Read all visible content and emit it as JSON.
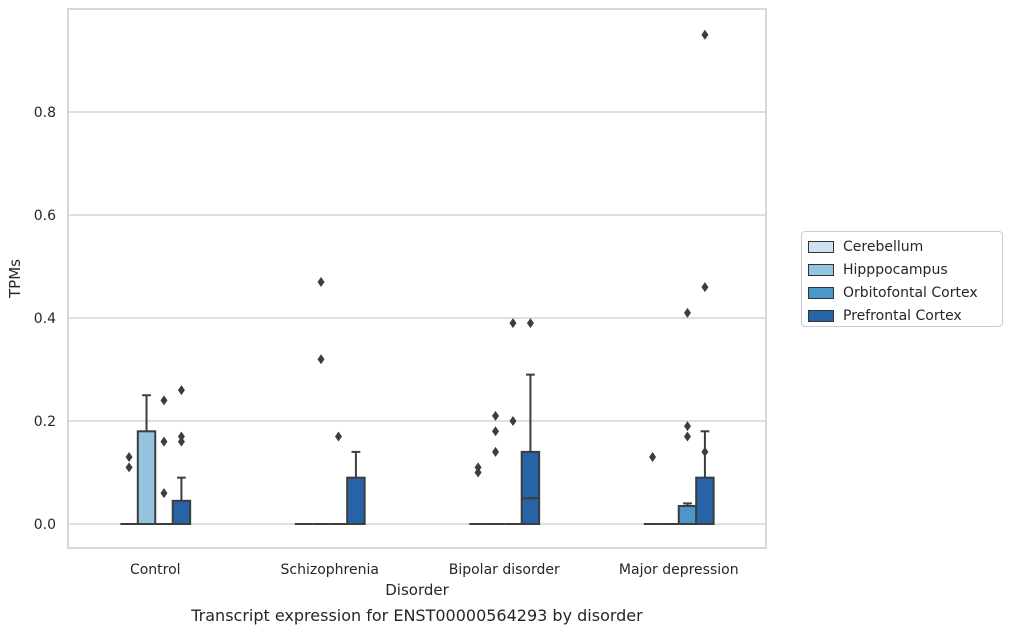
{
  "caption": "Transcript expression for ENST00000564293 by disorder",
  "chart_data": {
    "type": "box",
    "title": "",
    "xlabel": "Disorder",
    "ylabel": "TPMs",
    "ylim": [
      -0.045,
      1.0
    ],
    "yticks": [
      0.0,
      0.2,
      0.4,
      0.6,
      0.8
    ],
    "ytick_labels": [
      "0.0",
      "0.2",
      "0.4",
      "0.6",
      "0.8"
    ],
    "grid": "y",
    "legend_position": "right",
    "categories": [
      "Control",
      "Schizophrenia",
      "Bipolar disorder",
      "Major depression"
    ],
    "series": [
      {
        "name": "Cerebellum",
        "color": "#d0e1f2",
        "boxes": [
          {
            "q1": 0.0,
            "median": 0.0,
            "q3": 0.0,
            "whisker_low": 0.0,
            "whisker_high": 0.0,
            "outliers": [
              0.11,
              0.13
            ]
          },
          {
            "q1": 0.0,
            "median": 0.0,
            "q3": 0.0,
            "whisker_low": 0.0,
            "whisker_high": 0.0,
            "outliers": []
          },
          {
            "q1": 0.0,
            "median": 0.0,
            "q3": 0.0,
            "whisker_low": 0.0,
            "whisker_high": 0.0,
            "outliers": [
              0.1,
              0.11
            ]
          },
          {
            "q1": 0.0,
            "median": 0.0,
            "q3": 0.0,
            "whisker_low": 0.0,
            "whisker_high": 0.0,
            "outliers": [
              0.13
            ]
          }
        ]
      },
      {
        "name": "Hipppocampus",
        "color": "#94c4df",
        "boxes": [
          {
            "q1": 0.0,
            "median": 0.0,
            "q3": 0.18,
            "whisker_low": 0.0,
            "whisker_high": 0.25,
            "outliers": []
          },
          {
            "q1": 0.0,
            "median": 0.0,
            "q3": 0.0,
            "whisker_low": 0.0,
            "whisker_high": 0.0,
            "outliers": [
              0.32,
              0.47
            ]
          },
          {
            "q1": 0.0,
            "median": 0.0,
            "q3": 0.0,
            "whisker_low": 0.0,
            "whisker_high": 0.0,
            "outliers": [
              0.14,
              0.18,
              0.21
            ]
          },
          {
            "q1": 0.0,
            "median": 0.0,
            "q3": 0.0,
            "whisker_low": 0.0,
            "whisker_high": 0.0,
            "outliers": []
          }
        ]
      },
      {
        "name": "Orbitofontal Cortex",
        "color": "#4a98c9",
        "boxes": [
          {
            "q1": 0.0,
            "median": 0.0,
            "q3": 0.0,
            "whisker_low": 0.0,
            "whisker_high": 0.0,
            "outliers": [
              0.06,
              0.16,
              0.24
            ]
          },
          {
            "q1": 0.0,
            "median": 0.0,
            "q3": 0.0,
            "whisker_low": 0.0,
            "whisker_high": 0.0,
            "outliers": [
              0.17
            ]
          },
          {
            "q1": 0.0,
            "median": 0.0,
            "q3": 0.0,
            "whisker_low": 0.0,
            "whisker_high": 0.0,
            "outliers": [
              0.2,
              0.39
            ]
          },
          {
            "q1": 0.0,
            "median": 0.0,
            "q3": 0.035,
            "whisker_low": 0.0,
            "whisker_high": 0.04,
            "outliers": [
              0.17,
              0.19,
              0.41
            ]
          }
        ]
      },
      {
        "name": "Prefrontal Cortex",
        "color": "#2764a7",
        "boxes": [
          {
            "q1": 0.0,
            "median": 0.0,
            "q3": 0.045,
            "whisker_low": 0.0,
            "whisker_high": 0.09,
            "outliers": [
              0.16,
              0.17,
              0.26
            ]
          },
          {
            "q1": 0.0,
            "median": 0.0,
            "q3": 0.09,
            "whisker_low": 0.0,
            "whisker_high": 0.14,
            "outliers": []
          },
          {
            "q1": 0.0,
            "median": 0.05,
            "q3": 0.14,
            "whisker_low": 0.0,
            "whisker_high": 0.29,
            "outliers": [
              0.39
            ]
          },
          {
            "q1": 0.0,
            "median": 0.0,
            "q3": 0.09,
            "whisker_low": 0.0,
            "whisker_high": 0.18,
            "outliers": [
              0.14,
              0.46,
              0.95
            ]
          }
        ]
      }
    ]
  }
}
